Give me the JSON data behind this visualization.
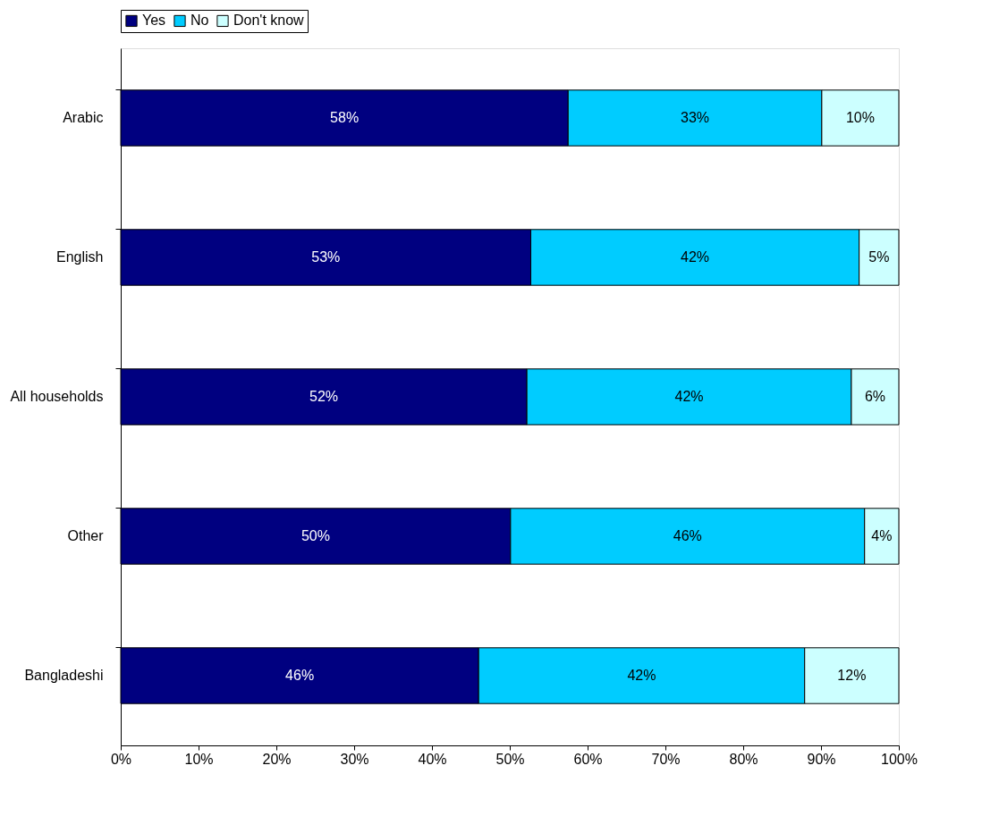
{
  "chart_data": {
    "type": "bar",
    "orientation": "horizontal",
    "stacked": true,
    "categories": [
      "Arabic",
      "English",
      "All households",
      "Other",
      "Bangladeshi"
    ],
    "series": [
      {
        "name": "Yes",
        "color": "#000080",
        "values": [
          57.5,
          52.7,
          52.2,
          50.1,
          46.0
        ],
        "value_labels": [
          "58%",
          "53%",
          "52%",
          "50%",
          "46%"
        ]
      },
      {
        "name": "No",
        "color": "#00ccff",
        "values": [
          32.6,
          42.2,
          41.7,
          45.5,
          41.9
        ],
        "value_labels": [
          "33%",
          "42%",
          "42%",
          "46%",
          "42%"
        ]
      },
      {
        "name": "Don't know",
        "color": "#ccffff",
        "values": [
          9.9,
          5.1,
          6.1,
          4.4,
          12.1
        ],
        "value_labels": [
          "10%",
          "5%",
          "6%",
          "4%",
          "12%"
        ]
      }
    ],
    "xlim": [
      0,
      100
    ],
    "xticks": [
      {
        "value": 0,
        "label": "0%"
      },
      {
        "value": 10,
        "label": "10%"
      },
      {
        "value": 20,
        "label": "20%"
      },
      {
        "value": 30,
        "label": "30%"
      },
      {
        "value": 40,
        "label": "40%"
      },
      {
        "value": 50,
        "label": "50%"
      },
      {
        "value": 60,
        "label": "60%"
      },
      {
        "value": 70,
        "label": "70%"
      },
      {
        "value": 80,
        "label": "80%"
      },
      {
        "value": 90,
        "label": "90%"
      },
      {
        "value": 100,
        "label": "100%"
      }
    ],
    "grid": false,
    "legend": "top"
  }
}
